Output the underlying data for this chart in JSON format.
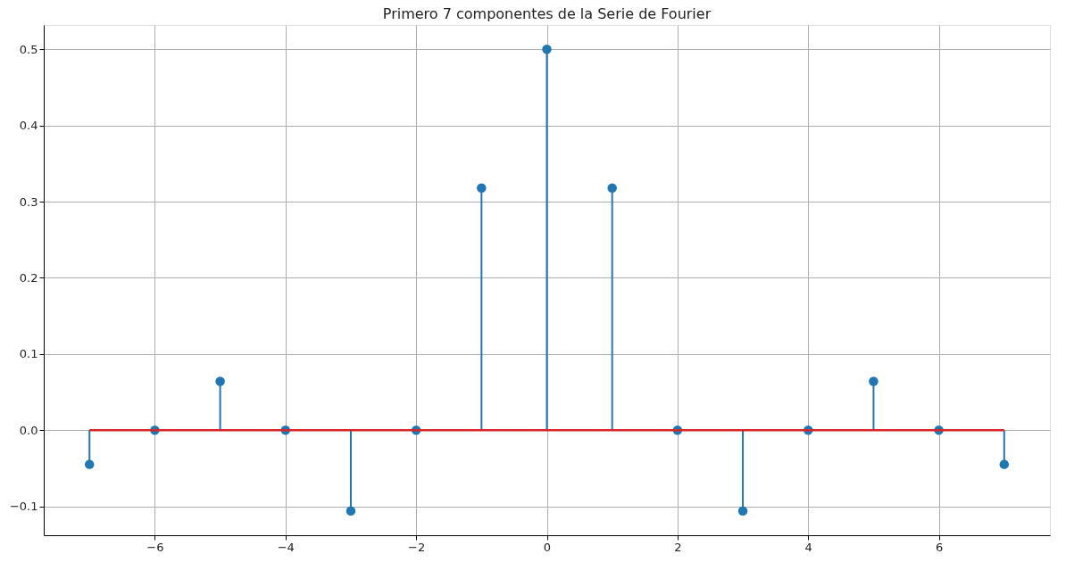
{
  "chart_data": {
    "type": "lollipop",
    "title": "Primero 7 componentes de la Serie de Fourier",
    "x": [
      -7,
      -6,
      -5,
      -4,
      -3,
      -2,
      -1,
      0,
      1,
      2,
      3,
      4,
      5,
      6,
      7
    ],
    "series": [
      {
        "color": "#1f77b4",
        "values": [
          -0.045,
          0,
          0.064,
          0,
          -0.106,
          0,
          0.318,
          0.5,
          0.318,
          0,
          -0.106,
          0,
          0.064,
          0,
          -0.045
        ]
      }
    ],
    "xlim": [
      -7.7,
      7.7
    ],
    "xticks": [
      {
        "value": -6,
        "label": "−6"
      },
      {
        "value": -4,
        "label": "−4"
      },
      {
        "value": -2,
        "label": "−2"
      },
      0,
      2,
      4,
      6
    ],
    "ylim": [
      -0.138,
      0.532
    ],
    "yticks": [
      {
        "value": -0.1,
        "label": "−0.1"
      },
      {
        "value": 0,
        "label": "0.0"
      },
      0.1,
      0.2,
      0.3,
      0.4,
      0.5
    ],
    "ref_lines": [
      {
        "axis": "y",
        "value": 0,
        "color": "#d62728"
      }
    ],
    "grid": true,
    "marker": "circle"
  }
}
